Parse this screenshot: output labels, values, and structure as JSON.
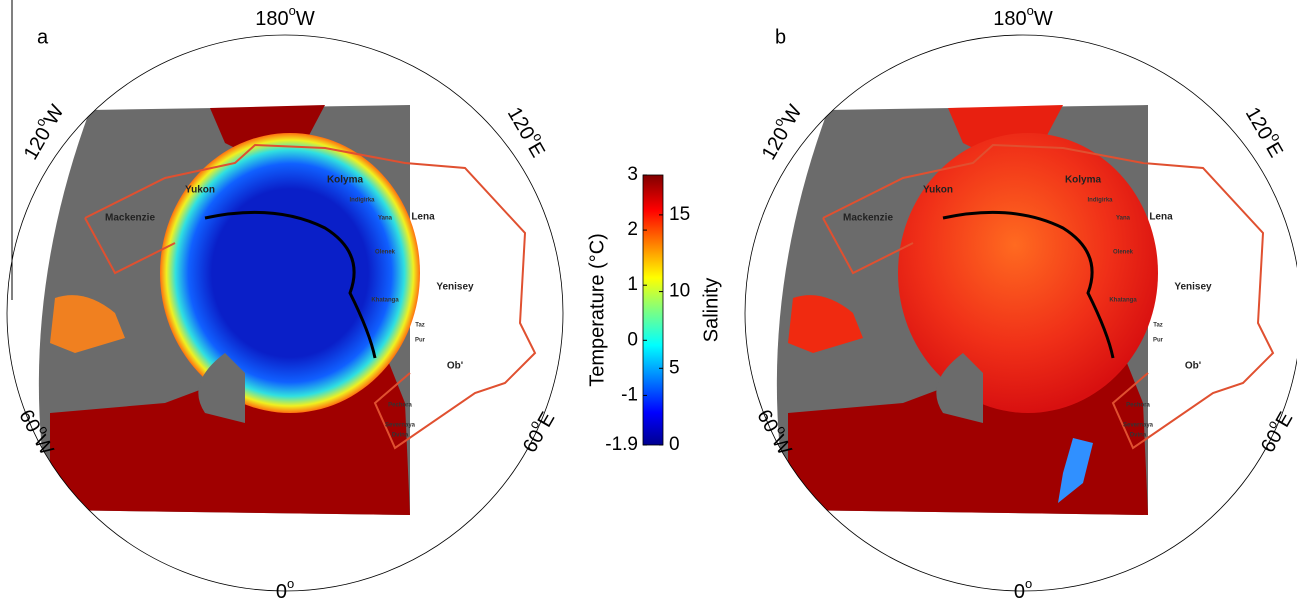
{
  "panels": [
    {
      "label": "a"
    },
    {
      "label": "b"
    }
  ],
  "degree_mark": "o",
  "longitude_labels": [
    {
      "degrees": "180",
      "hemisphere": "W"
    },
    {
      "degrees": "120",
      "hemisphere": "W"
    },
    {
      "degrees": "120",
      "hemisphere": "E"
    },
    {
      "degrees": "60",
      "hemisphere": "W"
    },
    {
      "degrees": "60",
      "hemisphere": "E"
    },
    {
      "degrees": "0",
      "hemisphere": ""
    }
  ],
  "basins": [
    "Yukon",
    "Kolyma",
    "Mackenzie",
    "Indigirka",
    "Yana",
    "Lena",
    "Olenek",
    "Yenisey",
    "Khatanga",
    "Taz",
    "Pur",
    "Ob'",
    "Pechora",
    "Severnaya",
    "Dvina"
  ],
  "colorbar": {
    "temperature": {
      "title": "Temperature (°C)",
      "lim": [
        -1.9,
        3
      ],
      "ticks": [
        -1.9,
        -1,
        0,
        1,
        2,
        3
      ]
    },
    "salinity": {
      "title": "Salinity",
      "lim": [
        0,
        17.6
      ],
      "ticks": [
        0,
        5,
        10,
        15
      ]
    }
  }
}
